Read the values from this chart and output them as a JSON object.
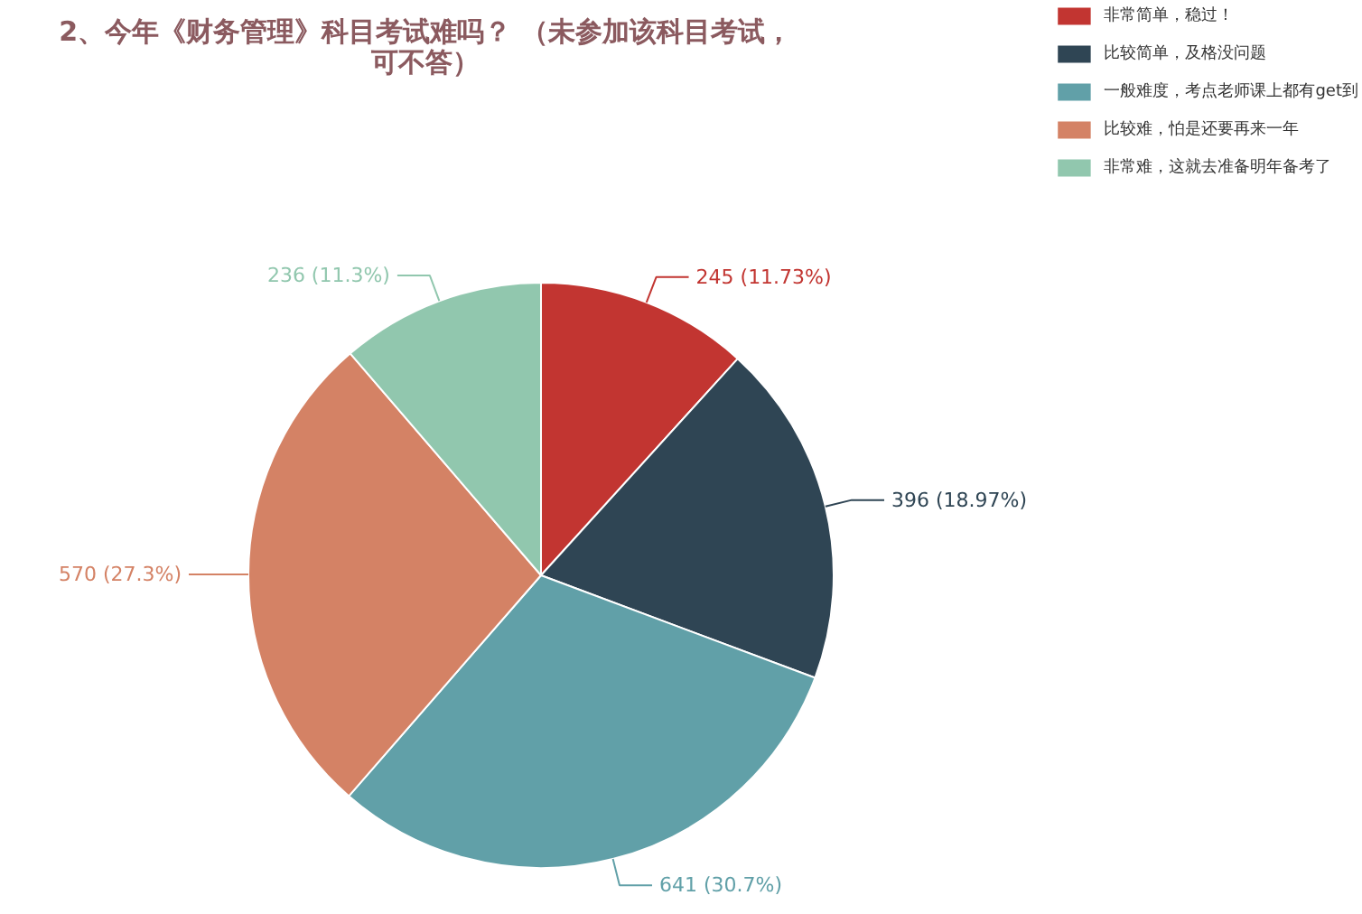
{
  "chart_data": {
    "type": "pie",
    "title": "2、今年《财务管理》科目考试难吗？ （未参加该科目考试，可不答）",
    "categories": [
      "非常简单，稳过！",
      "比较简单，及格没问题",
      "一般难度，考点老师课上都有get到",
      "比较难，怕是还要再来一年",
      "非常难，这就去准备明年备考了"
    ],
    "values": [
      245,
      396,
      641,
      570,
      236
    ],
    "colors": [
      "#c23531",
      "#2f4554",
      "#61a0a8",
      "#d48265",
      "#91c7ae"
    ],
    "value_labels": [
      "245 (11.73%)",
      "396 (18.97%)",
      "641 (30.7%)",
      "570 (27.3%)",
      "236 (11.3%)"
    ],
    "legend": "top right"
  }
}
